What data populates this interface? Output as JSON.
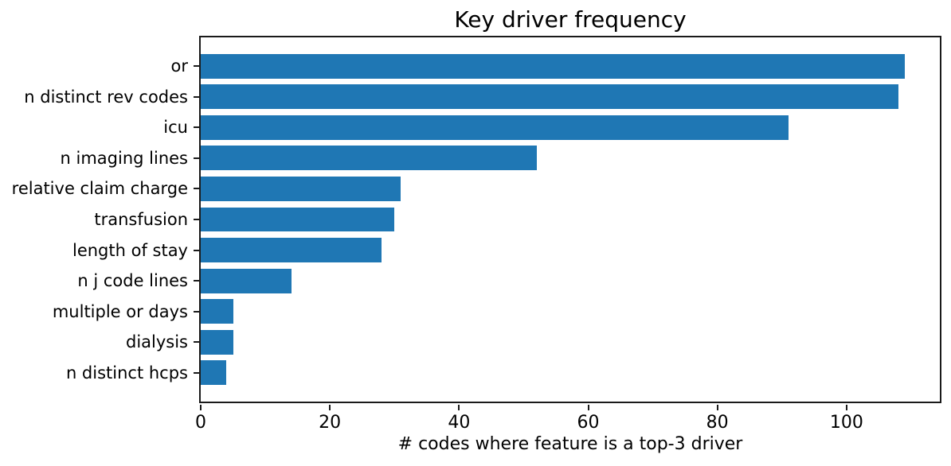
{
  "chart_data": {
    "type": "bar",
    "orientation": "horizontal",
    "title": "Key driver frequency",
    "xlabel": "# codes where feature is a top-3 driver",
    "ylabel": "",
    "categories": [
      "or",
      "n distinct rev codes",
      "icu",
      "n imaging lines",
      "relative claim charge",
      "transfusion",
      "length of stay",
      "n j code lines",
      "multiple or days",
      "dialysis",
      "n distinct hcps"
    ],
    "values": [
      109,
      108,
      91,
      52,
      31,
      30,
      28,
      14,
      5,
      5,
      4
    ],
    "x_ticks": [
      0,
      20,
      40,
      60,
      80,
      100
    ],
    "xlim": [
      0,
      114.45
    ],
    "bar_color": "#1f77b4",
    "grid": false,
    "legend": "none",
    "background_color": "#ffffff",
    "axis_color": "#1a1a1a"
  }
}
